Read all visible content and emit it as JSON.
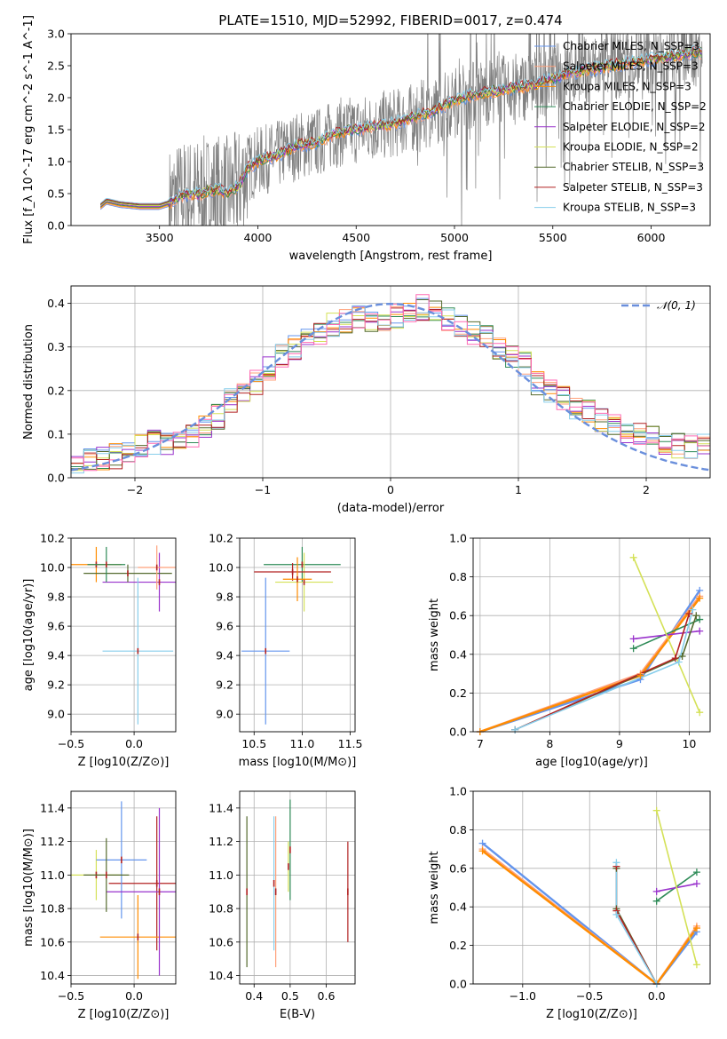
{
  "figure": {
    "title": "PLATE=1510, MJD=52992, FIBERID=0017, z=0.474"
  },
  "colors": {
    "data": "#808080",
    "Chabrier MILES": "#6495ed",
    "Salpeter MILES": "#ffa07a",
    "Kroupa MILES": "#ff8c00",
    "Chabrier ELODIE": "#2e8b57",
    "Salpeter ELODIE": "#9932cc",
    "Kroupa ELODIE": "#d4e157",
    "Chabrier STELIB": "#556b2f",
    "Salpeter STELIB": "#b22222",
    "Kroupa STELIB": "#87ceeb",
    "pink": "#ff69b4",
    "normal": "#6a8fdc"
  },
  "chart_data": [
    {
      "id": "spectrum",
      "type": "line",
      "title": "PLATE=1510, MJD=52992, FIBERID=0017, z=0.474",
      "xlabel": "wavelength [Angstrom, rest frame]",
      "ylabel": "Flux [f_λ 10^-17 erg cm^-2 s^-1 A^-1]",
      "xlim": [
        3050,
        6300
      ],
      "ylim": [
        0,
        3.0
      ],
      "xticks": [
        3500,
        4000,
        4500,
        5000,
        5500,
        6000
      ],
      "yticks": [
        0.0,
        0.5,
        1.0,
        1.5,
        2.0,
        2.5,
        3.0
      ],
      "grid": false,
      "legend_position": "top-right",
      "legend": [
        "Chabrier MILES, N_SSP=3",
        "Salpeter MILES, N_SSP=3",
        "Kroupa MILES, N_SSP=3",
        "Chabrier ELODIE, N_SSP=2",
        "Salpeter ELODIE, N_SSP=2",
        "Kroupa ELODIE, N_SSP=2",
        "Chabrier STELIB, N_SSP=3",
        "Salpeter STELIB, N_SSP=3",
        "Kroupa STELIB, N_SSP=3"
      ],
      "model_continuum": {
        "x": [
          3200,
          3230,
          3300,
          3400,
          3500,
          3550,
          3600,
          3650,
          3700,
          3750,
          3800,
          3850,
          3900,
          3950,
          4000,
          4100,
          4200,
          4300,
          4400,
          4500,
          4600,
          4700,
          4800,
          4850,
          4900,
          5000,
          5100,
          5200,
          5300,
          5400,
          5500,
          5600,
          5700,
          5800,
          5900,
          6000,
          6100,
          6200
        ],
        "y": [
          0.3,
          0.38,
          0.33,
          0.3,
          0.3,
          0.35,
          0.45,
          0.5,
          0.48,
          0.55,
          0.55,
          0.52,
          0.6,
          0.9,
          1.0,
          1.1,
          1.25,
          1.3,
          1.45,
          1.5,
          1.55,
          1.6,
          1.7,
          1.75,
          1.8,
          1.95,
          2.05,
          2.1,
          2.15,
          2.2,
          2.3,
          2.4,
          2.45,
          2.5,
          2.55,
          2.6,
          2.65,
          2.7
        ]
      }
    },
    {
      "id": "residuals",
      "type": "line",
      "xlabel": "(data-model)/error",
      "ylabel": "Normed distribution",
      "xlim": [
        -2.5,
        2.5
      ],
      "ylim": [
        0,
        0.44
      ],
      "xticks": [
        -2,
        -1,
        0,
        1,
        2
      ],
      "yticks": [
        0.0,
        0.1,
        0.2,
        0.3,
        0.4
      ],
      "grid": true,
      "legend": [
        "𝒩(0, 1)"
      ],
      "legend_position": "top-right",
      "hist_centers": [
        -2.45,
        -2.35,
        -2.25,
        -2.15,
        -2.05,
        -1.95,
        -1.85,
        -1.75,
        -1.65,
        -1.55,
        -1.45,
        -1.35,
        -1.25,
        -1.15,
        -1.05,
        -0.95,
        -0.85,
        -0.75,
        -0.65,
        -0.55,
        -0.45,
        -0.35,
        -0.25,
        -0.15,
        -0.05,
        0.05,
        0.15,
        0.25,
        0.35,
        0.45,
        0.55,
        0.65,
        0.75,
        0.85,
        0.95,
        1.05,
        1.15,
        1.25,
        1.35,
        1.45,
        1.55,
        1.65,
        1.75,
        1.85,
        1.95,
        2.05,
        2.15,
        2.25,
        2.35,
        2.45
      ],
      "hist_base": [
        0.04,
        0.04,
        0.045,
        0.05,
        0.055,
        0.07,
        0.08,
        0.075,
        0.09,
        0.1,
        0.12,
        0.14,
        0.18,
        0.2,
        0.22,
        0.25,
        0.28,
        0.3,
        0.32,
        0.33,
        0.35,
        0.36,
        0.37,
        0.36,
        0.35,
        0.37,
        0.38,
        0.39,
        0.38,
        0.36,
        0.35,
        0.33,
        0.32,
        0.3,
        0.28,
        0.26,
        0.22,
        0.2,
        0.18,
        0.16,
        0.15,
        0.13,
        0.12,
        0.11,
        0.1,
        0.09,
        0.08,
        0.075,
        0.07,
        0.07
      ]
    },
    {
      "id": "age_vs_Z",
      "type": "scatter",
      "xlabel": "Z [log10(Z/Z⊙)]",
      "ylabel": "age [log10(age/yr)]",
      "xlim": [
        -0.5,
        0.33
      ],
      "ylim": [
        8.88,
        10.2
      ],
      "xticks": [
        -0.5,
        0.0
      ],
      "yticks": [
        9.0,
        9.2,
        9.4,
        9.6,
        9.8,
        10.0,
        10.2
      ],
      "grid": true,
      "points": [
        {
          "x": -0.3,
          "y": 10.02,
          "xerr": 0.2,
          "yerr": 0.12
        },
        {
          "x": 0.2,
          "y": 9.9,
          "xerr": 0.45,
          "yerr": 0.2
        },
        {
          "x": -0.05,
          "y": 9.96,
          "xerr": 0.35,
          "yerr": 0.06
        },
        {
          "x": 0.03,
          "y": 9.43,
          "xerr": 0.28,
          "yerr": 0.5
        },
        {
          "x": 0.18,
          "y": 10.0,
          "xerr": 0.15,
          "yerr": 0.15
        },
        {
          "x": -0.22,
          "y": 10.02,
          "xerr": 0.15,
          "yerr": 0.12
        }
      ]
    },
    {
      "id": "age_vs_mass",
      "type": "scatter",
      "xlabel": "mass [log10(M/M⊙)]",
      "ylabel": "",
      "xlim": [
        10.35,
        11.55
      ],
      "ylim": [
        8.88,
        10.2
      ],
      "xticks": [
        10.5,
        11.0,
        11.5
      ],
      "yticks": [
        9.0,
        9.2,
        9.4,
        9.6,
        9.8,
        10.0,
        10.2
      ],
      "grid": true,
      "points": [
        {
          "x": 11.0,
          "y": 10.02,
          "xerr": 0.4,
          "yerr": 0.12
        },
        {
          "x": 11.02,
          "y": 9.9,
          "xerr": 0.3,
          "yerr": 0.2
        },
        {
          "x": 10.9,
          "y": 9.97,
          "xerr": 0.4,
          "yerr": 0.06
        },
        {
          "x": 10.62,
          "y": 9.43,
          "xerr": 0.25,
          "yerr": 0.5
        },
        {
          "x": 10.95,
          "y": 9.92,
          "xerr": 0.15,
          "yerr": 0.15
        }
      ]
    },
    {
      "id": "mass_weight_vs_age",
      "type": "line",
      "xlabel": "age [log10(age/yr)]",
      "ylabel": "mass weight",
      "xlim": [
        6.9,
        10.3
      ],
      "ylim": [
        0,
        1.0
      ],
      "xticks": [
        7,
        8,
        9,
        10
      ],
      "yticks": [
        0.0,
        0.2,
        0.4,
        0.6,
        0.8,
        1.0
      ],
      "grid": true,
      "series": [
        {
          "x": [
            7.0,
            9.3,
            10.15
          ],
          "y": [
            0.0,
            0.27,
            0.73
          ]
        },
        {
          "x": [
            7.0,
            9.3,
            10.15
          ],
          "y": [
            0.0,
            0.3,
            0.7
          ]
        },
        {
          "x": [
            7.0,
            9.3,
            10.15
          ],
          "y": [
            0.0,
            0.29,
            0.69
          ]
        },
        {
          "x": [
            9.2,
            10.15
          ],
          "y": [
            0.43,
            0.58
          ]
        },
        {
          "x": [
            9.2,
            10.15
          ],
          "y": [
            0.48,
            0.52
          ]
        },
        {
          "x": [
            9.2,
            10.15
          ],
          "y": [
            0.9,
            0.1
          ]
        },
        {
          "x": [
            7.5,
            9.9,
            10.1
          ],
          "y": [
            0.01,
            0.39,
            0.6
          ]
        },
        {
          "x": [
            7.5,
            9.8,
            10.0
          ],
          "y": [
            0.01,
            0.38,
            0.61
          ]
        },
        {
          "x": [
            7.5,
            9.85,
            10.05
          ],
          "y": [
            0.01,
            0.36,
            0.63
          ]
        }
      ]
    },
    {
      "id": "mass_vs_Z",
      "type": "scatter",
      "xlabel": "Z [log10(Z/Z⊙)]",
      "ylabel": "mass [log10(M/M⊙)]",
      "xlim": [
        -0.5,
        0.33
      ],
      "ylim": [
        10.35,
        11.5
      ],
      "xticks": [
        -0.5,
        0.0
      ],
      "yticks": [
        10.4,
        10.6,
        10.8,
        11.0,
        11.2,
        11.4
      ],
      "grid": true,
      "points": [
        {
          "x": -0.3,
          "y": 11.0,
          "xerr": 0.2,
          "yerr": 0.15
        },
        {
          "x": 0.18,
          "y": 10.95,
          "xerr": 0.38,
          "yerr": 0.4
        },
        {
          "x": -0.1,
          "y": 11.09,
          "xerr": 0.2,
          "yerr": 0.35
        },
        {
          "x": 0.03,
          "y": 10.63,
          "xerr": 0.3,
          "yerr": 0.25
        },
        {
          "x": 0.2,
          "y": 10.9,
          "xerr": 0.42,
          "yerr": 0.5
        },
        {
          "x": -0.22,
          "y": 11.0,
          "xerr": 0.18,
          "yerr": 0.22
        }
      ]
    },
    {
      "id": "mass_vs_ebv",
      "type": "scatter",
      "xlabel": "E(B-V)",
      "ylabel": "",
      "xlim": [
        0.36,
        0.68
      ],
      "ylim": [
        10.35,
        11.5
      ],
      "xticks": [
        0.4,
        0.5,
        0.6
      ],
      "yticks": [
        10.4,
        10.6,
        10.8,
        11.0,
        11.2,
        11.4
      ],
      "grid": true,
      "points": [
        {
          "x": 0.38,
          "y": 10.9,
          "yerr": 0.45
        },
        {
          "x": 0.455,
          "y": 10.95,
          "yerr": 0.4
        },
        {
          "x": 0.46,
          "y": 10.9,
          "yerr": 0.45
        },
        {
          "x": 0.5,
          "y": 11.15,
          "yerr": 0.3
        },
        {
          "x": 0.495,
          "y": 11.05,
          "yerr": 0.15
        },
        {
          "x": 0.66,
          "y": 10.9,
          "yerr": 0.3
        }
      ]
    },
    {
      "id": "mass_weight_vs_Z",
      "type": "line",
      "xlabel": "Z [log10(Z/Z⊙)]",
      "ylabel": "mass weight",
      "xlim": [
        -1.37,
        0.4
      ],
      "ylim": [
        0,
        1.0
      ],
      "xticks": [
        -1.0,
        -0.5,
        0.0
      ],
      "yticks": [
        0.0,
        0.2,
        0.4,
        0.6,
        0.8,
        1.0
      ],
      "grid": true,
      "series": [
        {
          "x": [
            -1.3,
            0.0,
            0.3
          ],
          "y": [
            0.73,
            0.0,
            0.27
          ]
        },
        {
          "x": [
            -1.3,
            0.0,
            0.3
          ],
          "y": [
            0.7,
            0.0,
            0.3
          ]
        },
        {
          "x": [
            -1.3,
            0.0,
            0.3
          ],
          "y": [
            0.69,
            0.0,
            0.29
          ]
        },
        {
          "x": [
            0.0,
            0.3
          ],
          "y": [
            0.43,
            0.58
          ]
        },
        {
          "x": [
            0.0,
            0.3
          ],
          "y": [
            0.48,
            0.52
          ]
        },
        {
          "x": [
            0.0,
            0.3
          ],
          "y": [
            0.9,
            0.1
          ]
        },
        {
          "x": [
            -0.3,
            -0.3,
            0.0
          ],
          "y": [
            0.6,
            0.39,
            0.0
          ]
        },
        {
          "x": [
            -0.3,
            -0.3,
            0.0
          ],
          "y": [
            0.61,
            0.38,
            0.0
          ]
        },
        {
          "x": [
            -0.3,
            -0.3,
            0.0
          ],
          "y": [
            0.63,
            0.36,
            0.0
          ]
        }
      ]
    }
  ]
}
